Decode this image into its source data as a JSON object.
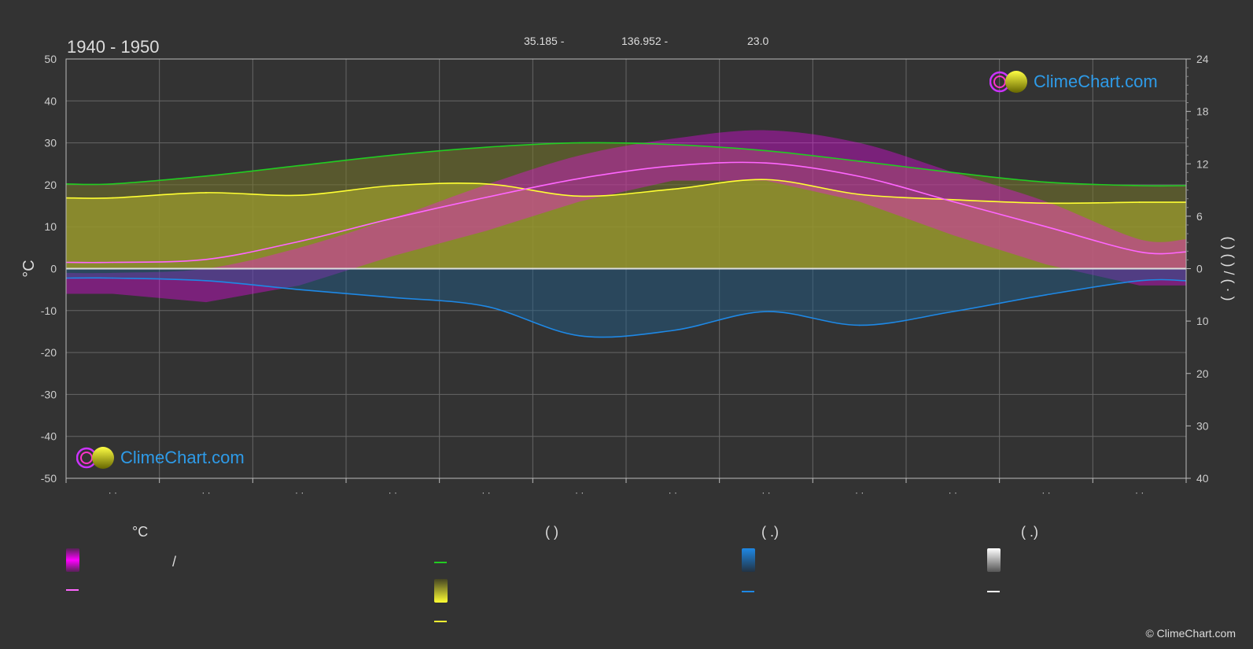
{
  "header": {
    "period": "1940 - 1950",
    "lat": "35.185 -",
    "lon": "136.952 -",
    "elev": "23.0"
  },
  "logo_text": "ClimeChart.com",
  "copyright": "© ClimeChart.com",
  "legend": {
    "col1_header": "°C",
    "col2_header": "(          )",
    "col3_header": "(   .)",
    "col4_header": "(   .)",
    "slash": "/"
  },
  "right_axis_label": "(    )         (    )                   /            (  ·  )",
  "colors": {
    "background": "#333333",
    "daylight": "#22cc22",
    "sunshine": "#ffff33",
    "temp_mean": "#ff66ff",
    "temp_range": "#ff00ff",
    "precip": "#1e88e5",
    "snow": "#ffffff",
    "grid": "#666666"
  },
  "chart_data": {
    "type": "area",
    "ylabel": "°C",
    "y_left": {
      "min": -50,
      "max": 50,
      "ticks": [
        50,
        40,
        30,
        20,
        10,
        0,
        -10,
        -20,
        -30,
        -40,
        -50
      ]
    },
    "y_right_top": {
      "min": 0,
      "max": 24,
      "ticks": [
        24,
        18,
        12,
        6,
        0
      ]
    },
    "y_right_bottom": {
      "min": 0,
      "max": 40,
      "ticks": [
        10,
        20,
        30,
        40
      ]
    },
    "months": 12,
    "month_labels": [
      "· ·",
      "· ·",
      "· ·",
      "· ·",
      "· ·",
      "· ·",
      "· ·",
      "· ·",
      "· ·",
      "· ·",
      "· ·",
      "· ·"
    ],
    "series": [
      {
        "key": "daylight",
        "axis": "right_top",
        "values": [
          9.7,
          10.6,
          11.8,
          13.0,
          13.9,
          14.4,
          14.2,
          13.5,
          12.3,
          11.0,
          9.9,
          9.5
        ]
      },
      {
        "key": "sunshine",
        "axis": "right_top",
        "values": [
          8.1,
          8.7,
          8.4,
          9.5,
          9.7,
          8.3,
          9.1,
          10.2,
          8.5,
          7.9,
          7.5,
          7.6
        ]
      },
      {
        "key": "temp_mean",
        "axis": "left",
        "values": [
          1.5,
          2.2,
          6.5,
          12.0,
          17.0,
          21.5,
          24.5,
          25.2,
          22.0,
          16.0,
          10.0,
          4.0
        ]
      },
      {
        "key": "precip",
        "axis": "right_bottom",
        "values": [
          1.8,
          2.3,
          4.0,
          5.5,
          7.2,
          12.8,
          11.8,
          8.2,
          10.8,
          8.2,
          5.0,
          2.3
        ]
      }
    ],
    "temp_band_top": [
      -1,
      0,
      5,
      12,
      20,
      27,
      31,
      33,
      30,
      23,
      16,
      7
    ],
    "temp_band_bottom": [
      -6,
      -8,
      -4,
      3,
      9,
      16,
      21,
      21,
      16,
      8,
      1,
      -4
    ]
  }
}
